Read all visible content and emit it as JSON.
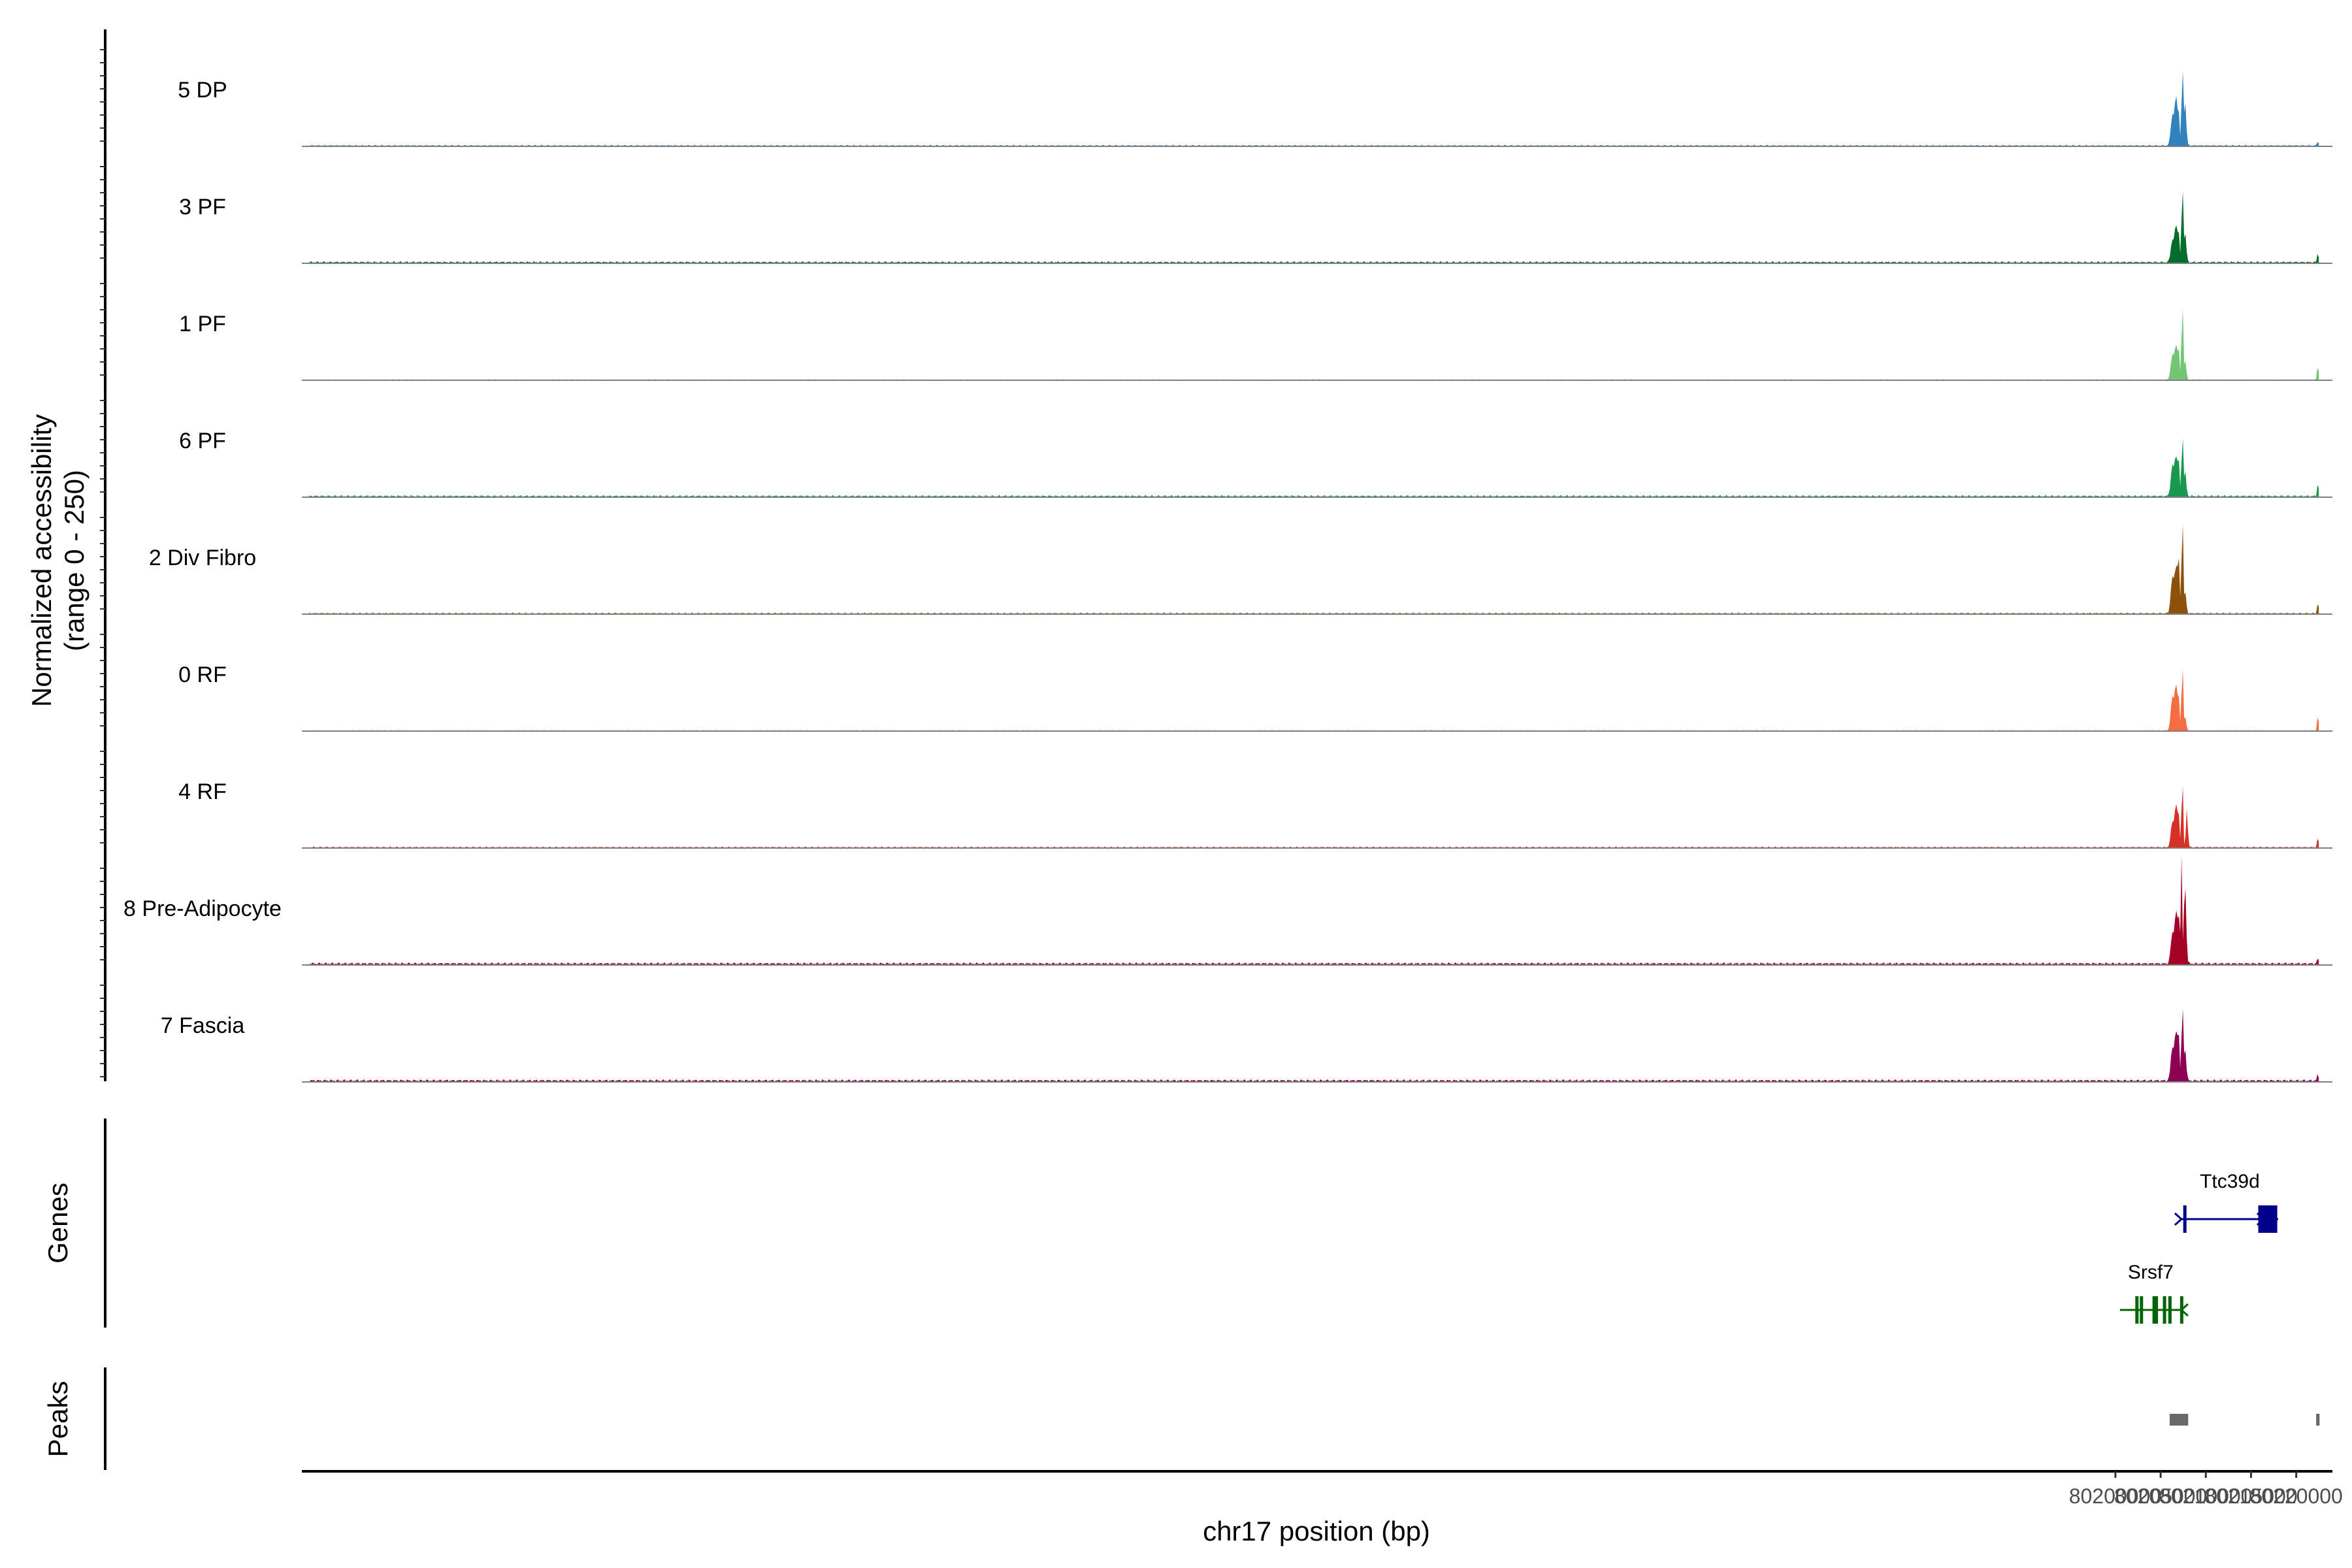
{
  "chart_data": {
    "type": "area",
    "title": "",
    "chromosome": "chr17",
    "xlabel": "chr17 position (bp)",
    "ylabel_line1": "Normalized accessibility",
    "ylabel_line2": "(range 0 - 250)",
    "xlim": [
      79999400,
      80224000
    ],
    "ylim": [
      0,
      250
    ],
    "x_ticks": [
      80200000,
      80205000,
      80210000,
      80215000,
      80220000
    ],
    "x_tick_labels": [
      "80200000",
      "80205000",
      "80210000",
      "80215000",
      "80220000"
    ],
    "series": [
      {
        "name": "5 DP",
        "color": "#3182BD",
        "base": 3,
        "widths": [
          1.0,
          1.0,
          1.0,
          1.0,
          0.9,
          1.0,
          0.7
        ],
        "peaks": [
          [
            80206300,
            55,
            250
          ],
          [
            80206700,
            85,
            200
          ],
          [
            80207000,
            55,
            150
          ],
          [
            80207400,
            165,
            100
          ],
          [
            80207700,
            80,
            180
          ],
          [
            80222400,
            8,
            120
          ]
        ]
      },
      {
        "name": "3 PF",
        "color": "#006D2C",
        "base": 4,
        "widths": [
          1.0,
          1.0,
          1.0,
          1.0,
          0.9,
          1.0,
          0.7
        ],
        "peaks": [
          [
            80206300,
            40,
            250
          ],
          [
            80206700,
            65,
            200
          ],
          [
            80207000,
            50,
            150
          ],
          [
            80207400,
            165,
            100
          ],
          [
            80207700,
            55,
            180
          ],
          [
            80222400,
            18,
            120
          ]
        ]
      },
      {
        "name": "1 PF",
        "color": "#74C476",
        "base": 2,
        "widths": [
          1.0,
          1.0,
          1.0,
          1.0,
          0.9,
          1.0,
          0.7
        ],
        "peaks": [
          [
            80206300,
            45,
            250
          ],
          [
            80206700,
            60,
            200
          ],
          [
            80207000,
            50,
            150
          ],
          [
            80207400,
            165,
            100
          ],
          [
            80207700,
            35,
            180
          ],
          [
            80222400,
            28,
            120
          ]
        ]
      },
      {
        "name": "6 PF",
        "color": "#1A9850",
        "base": 4,
        "widths": [
          1.0,
          1.0,
          1.0,
          1.0,
          0.9,
          1.0,
          0.7
        ],
        "peaks": [
          [
            80206300,
            55,
            250
          ],
          [
            80206700,
            70,
            200
          ],
          [
            80207000,
            60,
            150
          ],
          [
            80207400,
            135,
            100
          ],
          [
            80207700,
            45,
            180
          ],
          [
            80222400,
            25,
            120
          ]
        ]
      },
      {
        "name": "2 Div Fibro",
        "color": "#8C510A",
        "base": 3,
        "widths": [
          1.0,
          1.0,
          1.0,
          1.0,
          0.9,
          1.0,
          0.7
        ],
        "peaks": [
          [
            80206300,
            65,
            250
          ],
          [
            80206700,
            80,
            200
          ],
          [
            80207000,
            95,
            150
          ],
          [
            80207400,
            210,
            100
          ],
          [
            80207700,
            40,
            180
          ],
          [
            80222400,
            20,
            120
          ]
        ]
      },
      {
        "name": "0 RF",
        "color": "#F46D43",
        "base": 2,
        "widths": [
          1.0,
          1.0,
          1.0,
          1.0,
          0.9,
          1.0,
          0.7
        ],
        "peaks": [
          [
            80206300,
            60,
            250
          ],
          [
            80206700,
            80,
            200
          ],
          [
            80207000,
            55,
            150
          ],
          [
            80207400,
            145,
            100
          ],
          [
            80207700,
            25,
            180
          ],
          [
            80222400,
            28,
            120
          ]
        ]
      },
      {
        "name": "4 RF",
        "color": "#D73027",
        "base": 3,
        "widths": [
          1.0,
          1.0,
          1.0,
          1.0,
          0.9,
          1.0,
          0.7
        ],
        "peaks": [
          [
            80206300,
            45,
            250
          ],
          [
            80206700,
            75,
            200
          ],
          [
            80207000,
            55,
            150
          ],
          [
            80207400,
            150,
            100
          ],
          [
            80207900,
            70,
            140
          ],
          [
            80222400,
            18,
            120
          ]
        ]
      },
      {
        "name": "8 Pre-Adipocyte",
        "color": "#A50026",
        "base": 5,
        "widths": [
          1.0,
          1.0,
          1.0,
          1.0,
          0.9,
          1.0,
          0.7
        ],
        "peaks": [
          [
            80206300,
            55,
            250
          ],
          [
            80206700,
            90,
            200
          ],
          [
            80207000,
            80,
            150
          ],
          [
            80207300,
            195,
            100
          ],
          [
            80207700,
            145,
            180
          ],
          [
            80222400,
            10,
            120
          ]
        ]
      },
      {
        "name": "7 Fascia",
        "color": "#8E0152",
        "base": 5,
        "widths": [
          1.0,
          1.0,
          1.0,
          1.0,
          0.9,
          1.0,
          0.7
        ],
        "peaks": [
          [
            80206300,
            60,
            250
          ],
          [
            80206700,
            85,
            200
          ],
          [
            80207000,
            80,
            150
          ],
          [
            80207400,
            165,
            100
          ],
          [
            80207700,
            60,
            180
          ],
          [
            80222400,
            12,
            120
          ]
        ]
      }
    ],
    "genes_label": "Genes",
    "peaks_label": "Peaks",
    "genes": [
      {
        "name": "Ttc39d",
        "strand": "+",
        "color": "#00008B",
        "row": 0,
        "start": 80207300,
        "end": 80218000,
        "exons": [
          [
            80207500,
            80207800
          ],
          [
            80215800,
            80217900
          ]
        ]
      },
      {
        "name": "Srsf7",
        "strand": "-",
        "color": "#006400",
        "row": 1,
        "start": 80200500,
        "end": 80207300,
        "exons": [
          [
            80202200,
            80202240
          ],
          [
            80202700,
            80202760
          ],
          [
            80204100,
            80204230
          ],
          [
            80204350,
            80204420
          ],
          [
            80205250,
            80205400
          ],
          [
            80205850,
            80206020
          ],
          [
            80207150,
            80207280
          ]
        ]
      }
    ],
    "peak_regions": [
      [
        80206000,
        80208050
      ],
      [
        80222200,
        80222580
      ]
    ],
    "peak_color": "#696969"
  }
}
